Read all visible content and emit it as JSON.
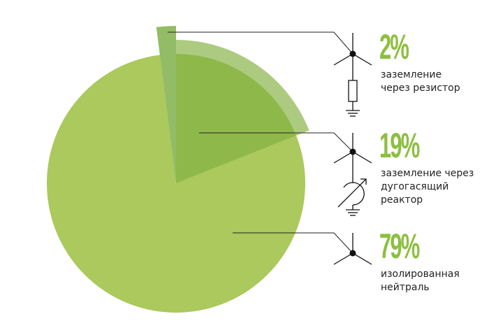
{
  "chart_data": {
    "type": "pie",
    "categories": [
      "заземление\nчерез резистор",
      "заземление через\nдугогасящий\nреактор",
      "изолированная\nнейтраль"
    ],
    "values": [
      2,
      19,
      79
    ],
    "value_labels": [
      "2%",
      "19%",
      "79%"
    ],
    "colors": [
      "#7fb04a",
      "#8fb84b",
      "#abc95c"
    ]
  }
}
